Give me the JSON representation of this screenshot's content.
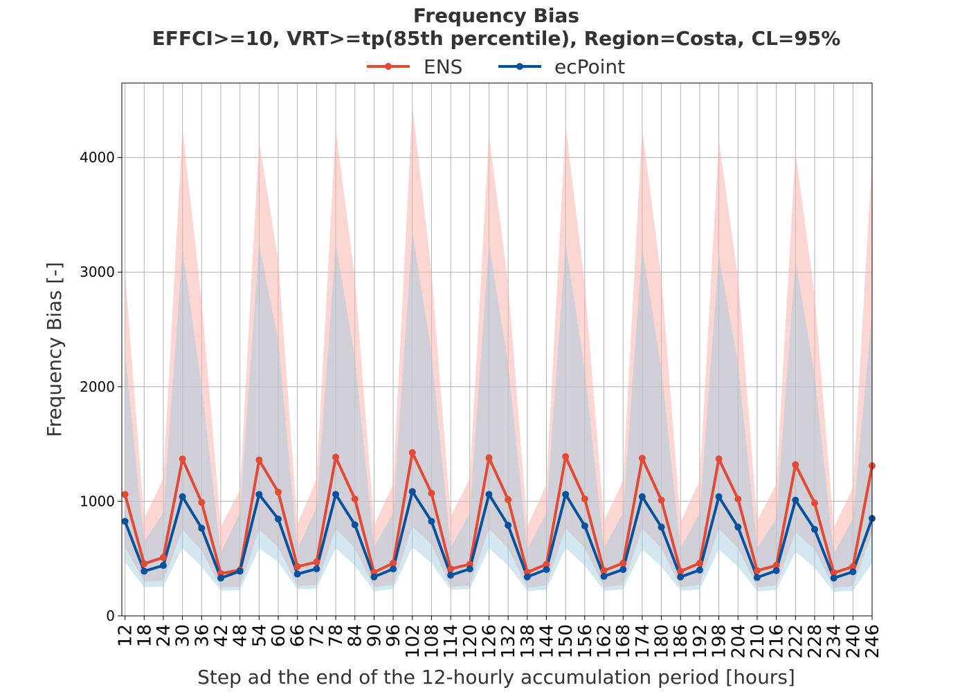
{
  "chart_data": {
    "type": "line",
    "title": "Frequency Bias",
    "subtitle": "EFFCI>=10, VRT>=tp(85th percentile), Region=Costa, CL=95%",
    "xlabel": "Step ad the end of the 12-hourly accumulation period [hours]",
    "ylabel": "Frequency Bias [-]",
    "x": [
      12,
      18,
      24,
      30,
      36,
      42,
      48,
      54,
      60,
      66,
      72,
      78,
      84,
      90,
      96,
      102,
      108,
      114,
      120,
      126,
      132,
      138,
      144,
      150,
      156,
      162,
      168,
      174,
      180,
      186,
      192,
      198,
      204,
      210,
      216,
      222,
      228,
      234,
      240,
      246
    ],
    "x_tick_labels": [
      "12",
      "18",
      "24",
      "30",
      "36",
      "42",
      "48",
      "54",
      "60",
      "66",
      "72",
      "78",
      "84",
      "90",
      "96",
      "102",
      "108",
      "114",
      "120",
      "126",
      "132",
      "138",
      "144",
      "150",
      "156",
      "162",
      "168",
      "174",
      "180",
      "186",
      "192",
      "198",
      "204",
      "210",
      "216",
      "222",
      "228",
      "234",
      "240",
      "246"
    ],
    "xlim": [
      11,
      246
    ],
    "ylim": [
      0,
      4650
    ],
    "y_ticks": [
      0,
      1000,
      2000,
      3000,
      4000
    ],
    "y_tick_labels": [
      "0",
      "1000",
      "2000",
      "3000",
      "4000"
    ],
    "grid": true,
    "legend": {
      "placement": "top-center",
      "entries": [
        "ENS",
        "ecPoint"
      ]
    },
    "series": [
      {
        "name": "ENS",
        "color": "#e34a33",
        "band_color": "#f8b4ad",
        "values": [
          1060,
          455,
          510,
          1370,
          990,
          370,
          400,
          1360,
          1080,
          430,
          470,
          1385,
          1020,
          380,
          460,
          1425,
          1070,
          410,
          450,
          1380,
          1015,
          380,
          450,
          1390,
          1020,
          395,
          460,
          1375,
          1010,
          390,
          460,
          1370,
          1020,
          395,
          440,
          1320,
          985,
          375,
          430,
          1310
        ],
        "ci_lower": [
          600,
          300,
          305,
          750,
          570,
          250,
          255,
          750,
          600,
          260,
          270,
          760,
          590,
          250,
          270,
          780,
          620,
          250,
          265,
          760,
          590,
          245,
          265,
          765,
          595,
          250,
          270,
          760,
          590,
          250,
          270,
          760,
          590,
          250,
          265,
          730,
          580,
          245,
          260,
          720
        ],
        "ci_upper": [
          3000,
          850,
          1200,
          4250,
          2750,
          780,
          1100,
          4150,
          3100,
          800,
          1200,
          4250,
          2950,
          790,
          1150,
          4450,
          3000,
          870,
          1200,
          4200,
          2900,
          780,
          1150,
          4280,
          2900,
          830,
          1180,
          4250,
          2950,
          820,
          1180,
          4150,
          2950,
          830,
          1150,
          4050,
          2800,
          770,
          1120,
          4000
        ]
      },
      {
        "name": "ecPoint",
        "color": "#08519c",
        "band_color": "#9ecae1",
        "values": [
          825,
          390,
          440,
          1040,
          765,
          330,
          390,
          1060,
          845,
          365,
          410,
          1060,
          795,
          340,
          410,
          1085,
          825,
          355,
          410,
          1060,
          790,
          340,
          405,
          1060,
          785,
          345,
          405,
          1040,
          775,
          340,
          400,
          1040,
          775,
          335,
          395,
          1010,
          755,
          330,
          385,
          850
        ],
        "ci_lower": [
          470,
          250,
          255,
          590,
          430,
          220,
          225,
          590,
          470,
          230,
          240,
          590,
          440,
          215,
          235,
          600,
          460,
          225,
          235,
          590,
          440,
          215,
          230,
          590,
          440,
          220,
          230,
          580,
          430,
          220,
          230,
          580,
          430,
          215,
          225,
          560,
          420,
          210,
          220,
          460
        ],
        "ci_upper": [
          2300,
          650,
          900,
          3200,
          2000,
          550,
          900,
          3250,
          2400,
          580,
          950,
          3250,
          2250,
          600,
          900,
          3350,
          2300,
          590,
          900,
          3250,
          2200,
          580,
          900,
          3250,
          2150,
          590,
          900,
          3220,
          2150,
          590,
          900,
          3150,
          2200,
          590,
          850,
          3100,
          2100,
          540,
          850,
          2650
        ]
      }
    ]
  }
}
